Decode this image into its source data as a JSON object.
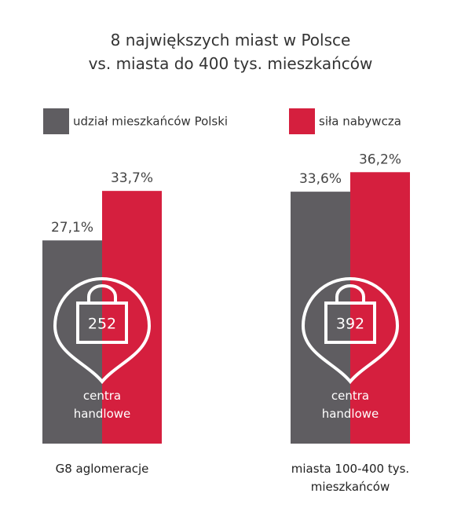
{
  "chart_data": {
    "type": "bar",
    "title": "8 największych miast w Polsce\nvs. miasta do 400 tys. mieszkańców",
    "categories": [
      "G8 aglomeracje",
      "miasta 100-400 tys.\nmieszkańców"
    ],
    "series": [
      {
        "name": "udział mieszkańców Polski",
        "color": "#5f5d61",
        "values": [
          27.1,
          33.6
        ],
        "value_labels": [
          "27,1%",
          "33,6%"
        ]
      },
      {
        "name": "siła nabywcza",
        "color": "#d51f3e",
        "values": [
          33.7,
          36.2
        ],
        "value_labels": [
          "33,7%",
          "36,2%"
        ]
      }
    ],
    "annotations": [
      {
        "number": "252",
        "text": "centra\nhandlowe"
      },
      {
        "number": "392",
        "text": "centra\nhandlowe"
      }
    ]
  }
}
